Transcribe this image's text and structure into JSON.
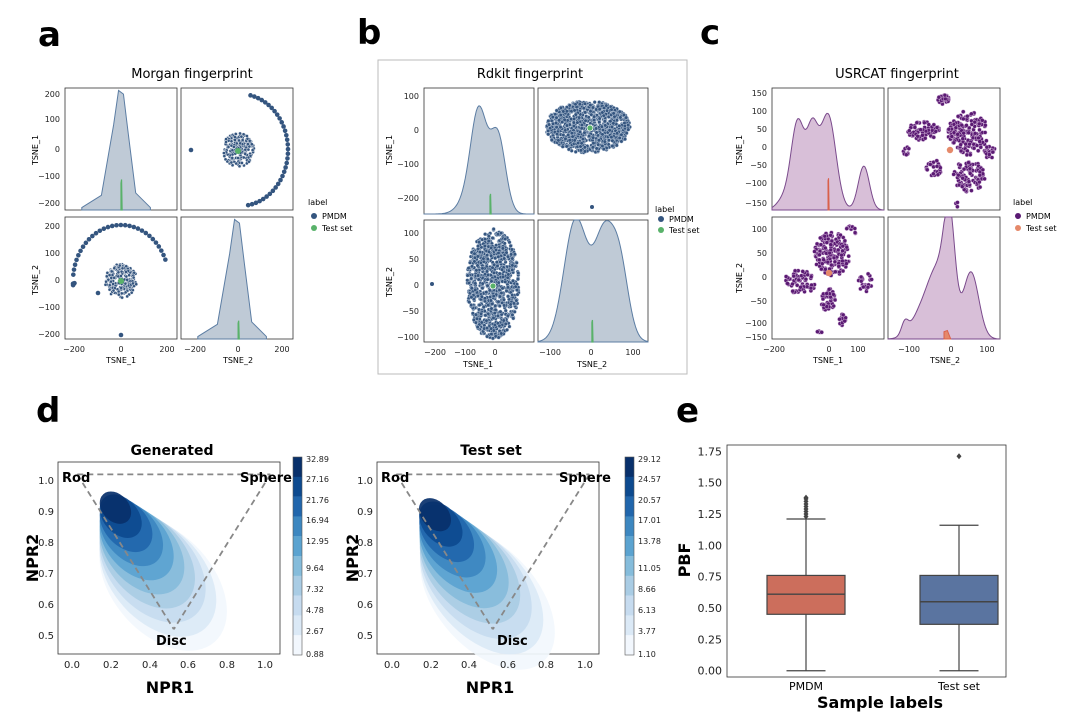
{
  "panel_letters": {
    "a": "a",
    "b": "b",
    "c": "c",
    "d": "d",
    "e": "e"
  },
  "colors": {
    "pmdm_tsne": "#34557f",
    "testset_tsne": "#59b26a",
    "kde_fill": "#bfcad6",
    "kde_line": "#5c7da3",
    "purple_fill": "#d8bfd8",
    "purple_line": "#7a4a8c",
    "purple_point": "#5a1a73",
    "orange_point": "#e5896a",
    "box_pmdm": "#cc6e5c",
    "box_test": "#5a74a0",
    "density_dark": "#08306b",
    "density_light": "#f2f7fd"
  },
  "chart_data": [
    {
      "id": "a",
      "type": "scatter",
      "title": "Morgan fingerprint",
      "legend": {
        "title": "label",
        "entries": [
          "PMDM",
          "Test set"
        ],
        "placement": "right"
      },
      "xlabels": [
        "TSNE_1",
        "TSNE_2"
      ],
      "ylabels": [
        "TSNE_1",
        "TSNE_2"
      ],
      "lim": [
        -200,
        200
      ],
      "yticks": [
        "200",
        "100",
        "0",
        "−100",
        "−200"
      ],
      "xticks": [
        "−200",
        "0",
        "200"
      ],
      "diag_kde_pmdm": [
        [
          -80,
          0.02
        ],
        [
          -40,
          0.12
        ],
        [
          -15,
          0.7
        ],
        [
          -5,
          0.98
        ],
        [
          5,
          0.95
        ],
        [
          15,
          0.62
        ],
        [
          30,
          0.14
        ],
        [
          60,
          0.02
        ]
      ],
      "diag_kde_test": [
        [
          -6,
          0.0
        ],
        [
          -2,
          0.25
        ],
        [
          0,
          0.35
        ],
        [
          2,
          0.25
        ],
        [
          6,
          0.0
        ]
      ]
    },
    {
      "id": "b",
      "type": "scatter",
      "title": "Rdkit fingerprint",
      "legend": {
        "title": "label",
        "entries": [
          "PMDM",
          "Test set"
        ],
        "placement": "right"
      },
      "xlabels": [
        "TSNE_1",
        "TSNE_2"
      ],
      "ylabels": [
        "TSNE_1",
        "TSNE_2"
      ],
      "xticks_left": [
        "−200",
        "−100",
        "0"
      ],
      "xticks_right": [
        "−100",
        "0",
        "100"
      ],
      "yticks": [
        "100",
        "0",
        "−100",
        "−200"
      ],
      "yticks_bottom": [
        "100",
        "50",
        "0",
        "−50",
        "−100"
      ]
    },
    {
      "id": "c",
      "type": "scatter",
      "title": "USRCAT fingerprint",
      "legend": {
        "title": "label",
        "entries": [
          "PMDM",
          "Test set"
        ],
        "placement": "right"
      },
      "xlabels": [
        "TSNE_1",
        "TSNE_2"
      ],
      "ylabels": [
        "TSNE_1",
        "TSNE_2"
      ],
      "yticks": [
        "150",
        "100",
        "50",
        "0",
        "−50",
        "−100",
        "−150"
      ],
      "xticks_left": [
        "−200",
        "0",
        "100"
      ],
      "xticks_right": [
        "−100",
        "0",
        "100"
      ]
    },
    {
      "id": "d1",
      "type": "heatmap",
      "title": "Generated",
      "xlabel": "NPR1",
      "ylabel": "NPR2",
      "xlim": [
        -0.1,
        1.05
      ],
      "ylim": [
        0.42,
        1.04
      ],
      "xticks": [
        "0.0",
        "0.2",
        "0.4",
        "0.6",
        "0.8",
        "1.0"
      ],
      "yticks": [
        "1.0",
        "0.9",
        "0.8",
        "0.7",
        "0.6",
        "0.5"
      ],
      "corners": {
        "rod": "Rod",
        "sphere": "Sphere",
        "disc": "Disc"
      },
      "colorbar_ticks": [
        "32.89",
        "27.16",
        "21.76",
        "16.94",
        "12.95",
        "9.64",
        "7.32",
        "4.78",
        "2.67",
        "0.88"
      ],
      "peak": [
        0.17,
        0.92
      ]
    },
    {
      "id": "d2",
      "type": "heatmap",
      "title": "Test set",
      "xlabel": "NPR1",
      "ylabel": "NPR2",
      "xlim": [
        -0.1,
        1.05
      ],
      "ylim": [
        0.42,
        1.04
      ],
      "xticks": [
        "0.0",
        "0.2",
        "0.4",
        "0.6",
        "0.8",
        "1.0"
      ],
      "yticks": [
        "1.0",
        "0.9",
        "0.8",
        "0.7",
        "0.6",
        "0.5"
      ],
      "corners": {
        "rod": "Rod",
        "sphere": "Sphere",
        "disc": "Disc"
      },
      "colorbar_ticks": [
        "29.12",
        "24.57",
        "20.57",
        "17.01",
        "13.78",
        "11.05",
        "8.66",
        "6.13",
        "3.77",
        "1.10"
      ],
      "peak": [
        0.17,
        0.9
      ]
    },
    {
      "id": "e",
      "type": "box",
      "xlabel": "Sample labels",
      "ylabel": "PBF",
      "categories": [
        "PMDM",
        "Test set"
      ],
      "ylim": [
        -0.05,
        1.8
      ],
      "yticks": [
        "0.00",
        "0.25",
        "0.50",
        "0.75",
        "1.00",
        "1.25",
        "1.50",
        "1.75"
      ],
      "boxes": [
        {
          "name": "PMDM",
          "whislo": 0.0,
          "q1": 0.45,
          "med": 0.61,
          "q3": 0.76,
          "whishi": 1.21,
          "fliers": [
            1.23,
            1.25,
            1.27,
            1.29,
            1.31,
            1.33,
            1.35,
            1.37,
            1.38
          ]
        },
        {
          "name": "Test set",
          "whislo": 0.0,
          "q1": 0.37,
          "med": 0.55,
          "q3": 0.76,
          "whishi": 1.16,
          "fliers": [
            1.71
          ]
        }
      ]
    }
  ]
}
